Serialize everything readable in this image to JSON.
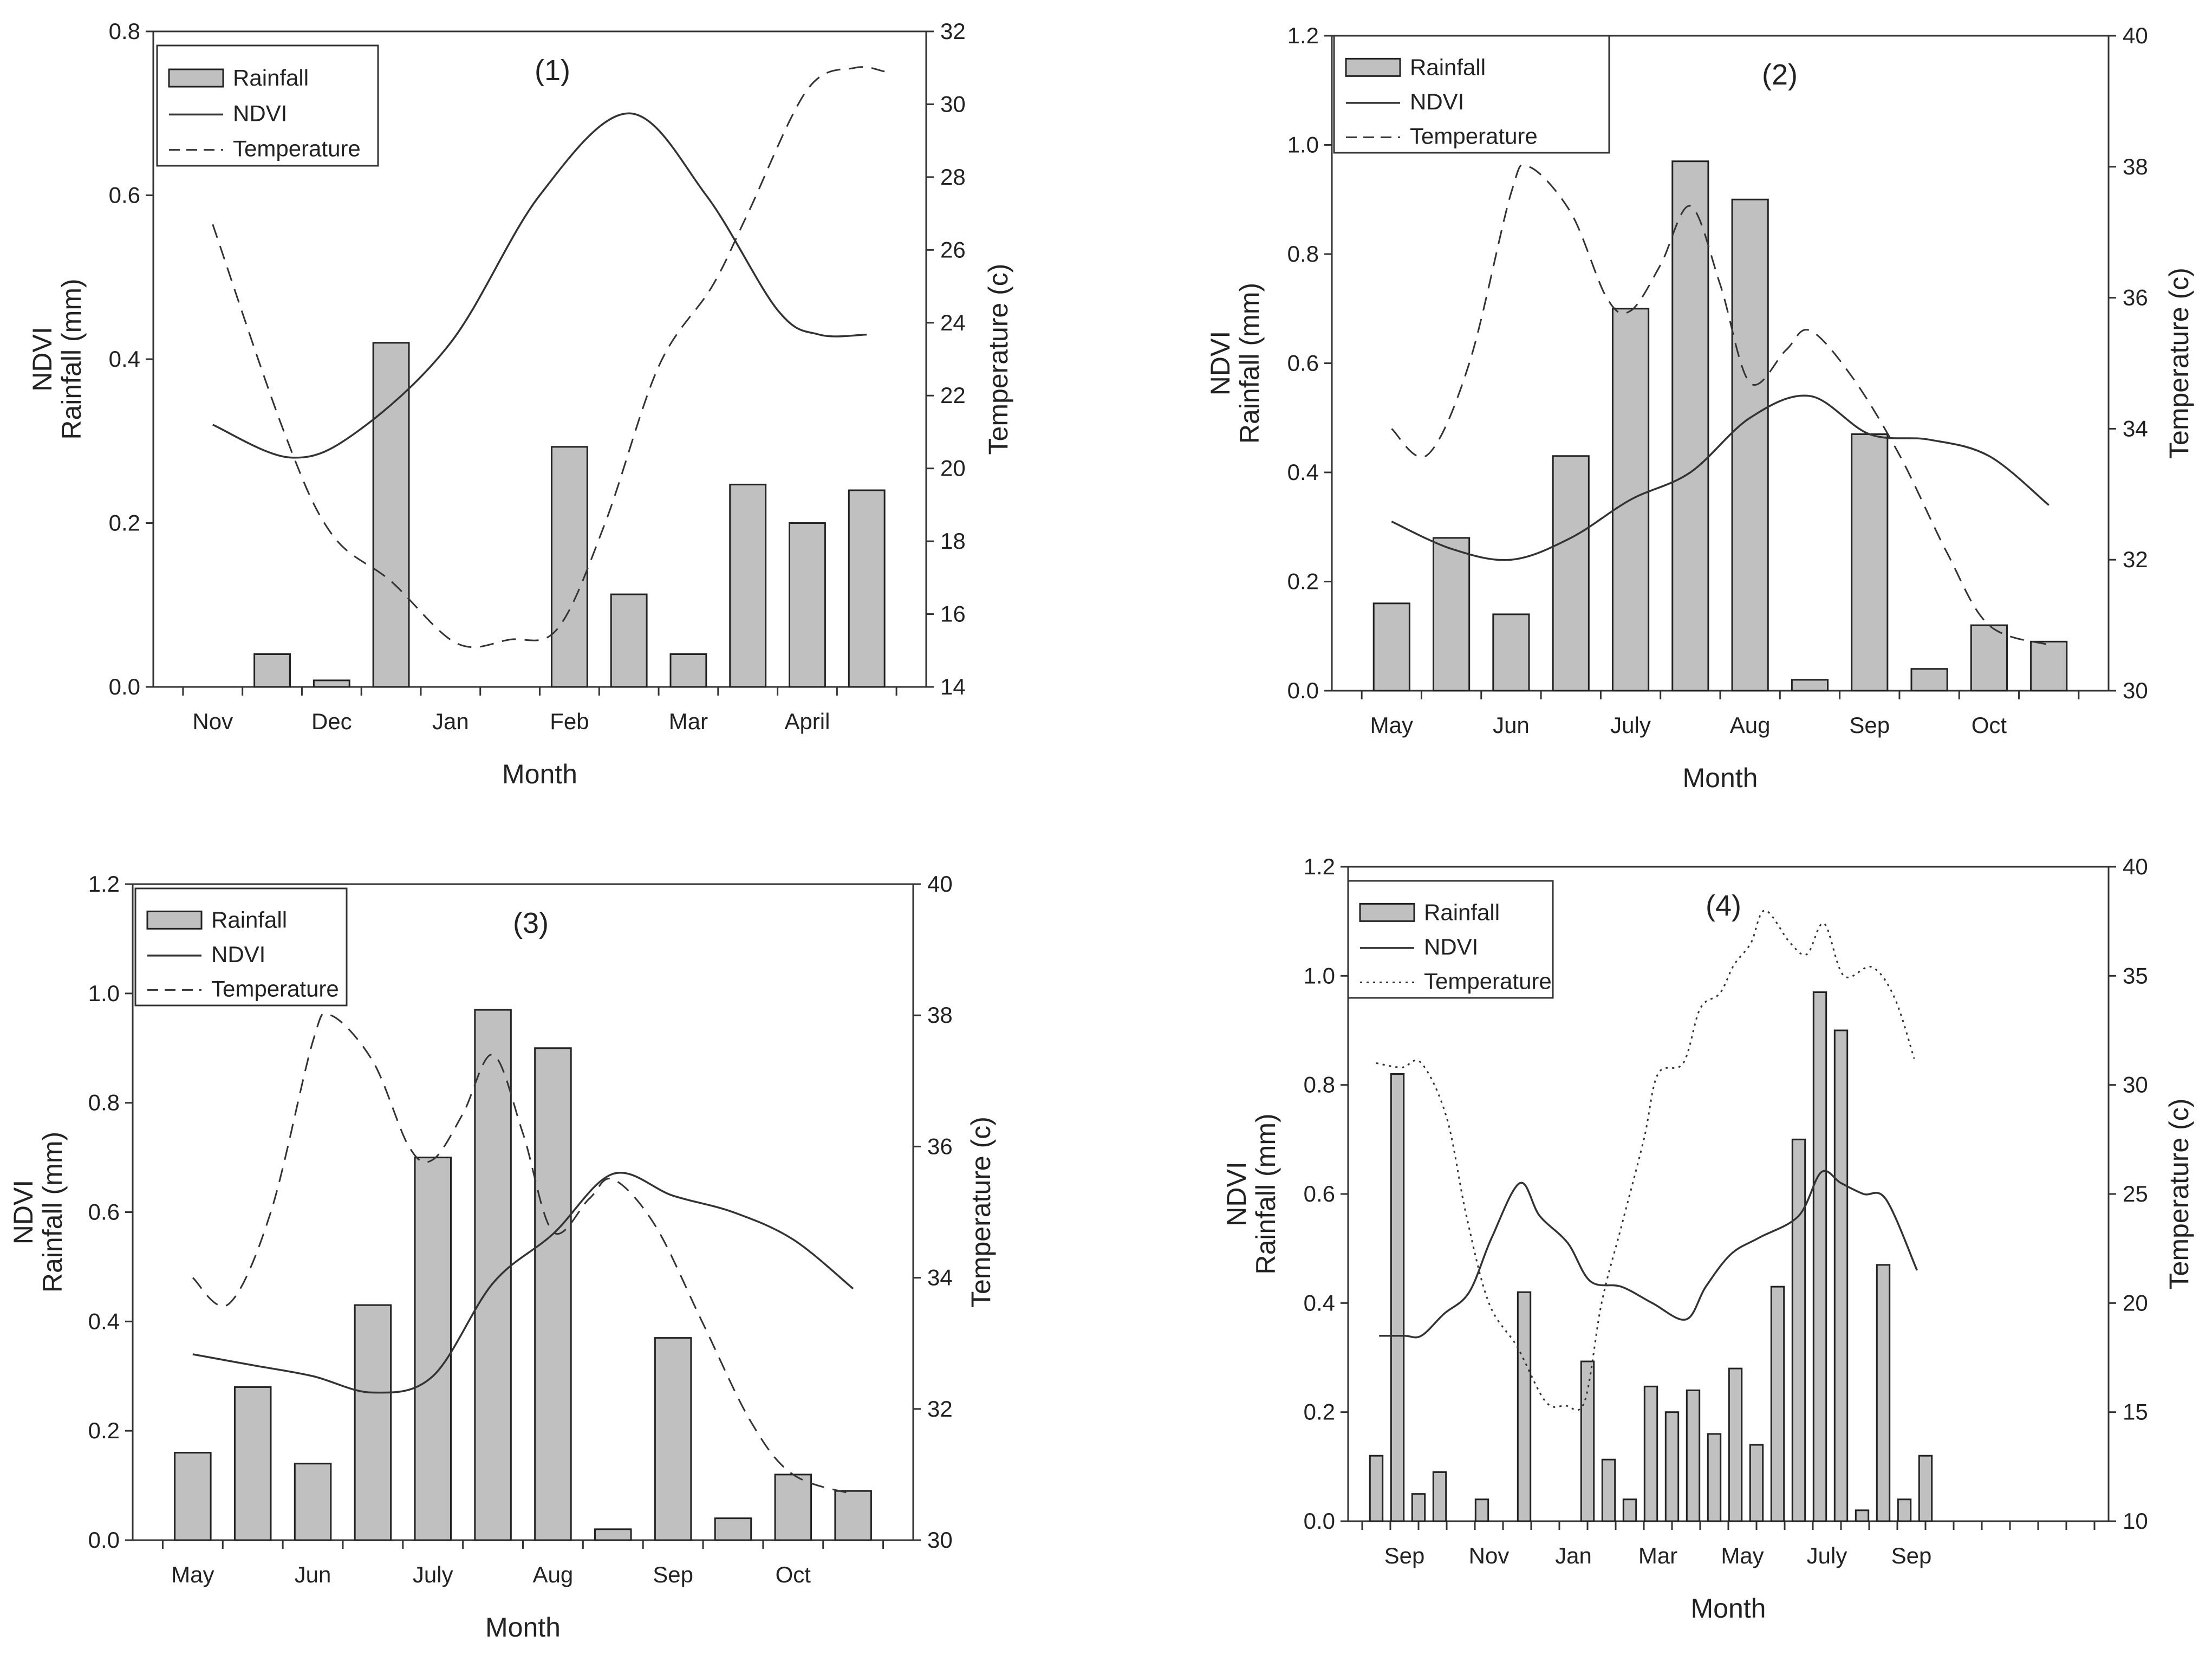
{
  "chart_data": [
    {
      "type": "bar",
      "title": "(1)",
      "xlabel": "Month",
      "ylabel": "NDVI\nRainfall (mm)",
      "y2label": "Temperature (c)",
      "ylim": [
        0,
        0.8
      ],
      "y2lim": [
        14,
        32
      ],
      "yticks": [
        "0.0",
        "0.2",
        "0.4",
        "0.6",
        "0.8"
      ],
      "y2ticks": [
        "14",
        "16",
        "18",
        "20",
        "22",
        "24",
        "26",
        "28",
        "30",
        "32"
      ],
      "xlim": [
        0,
        13
      ],
      "n_slots": 13,
      "month_labels": [
        {
          "label": "Nov",
          "pos": 1
        },
        {
          "label": "Dec",
          "pos": 3
        },
        {
          "label": "Jan",
          "pos": 5
        },
        {
          "label": "Feb",
          "pos": 7
        },
        {
          "label": "Mar",
          "pos": 9
        },
        {
          "label": "April",
          "pos": 11
        }
      ],
      "rainfall": [
        {
          "pos": 2,
          "value": 0.04
        },
        {
          "pos": 3,
          "value": 0.008
        },
        {
          "pos": 4,
          "value": 0.42
        },
        {
          "pos": 7,
          "value": 0.293
        },
        {
          "pos": 8,
          "value": 0.113
        },
        {
          "pos": 9,
          "value": 0.04
        },
        {
          "pos": 10,
          "value": 0.247
        },
        {
          "pos": 11,
          "value": 0.2
        },
        {
          "pos": 12,
          "value": 0.24
        }
      ],
      "ndvi": [
        [
          1,
          0.32
        ],
        [
          2.3,
          0.28
        ],
        [
          3.4,
          0.31
        ],
        [
          5,
          0.42
        ],
        [
          6.5,
          0.6
        ],
        [
          8,
          0.7
        ],
        [
          9.3,
          0.6
        ],
        [
          10.5,
          0.46
        ],
        [
          11.2,
          0.43
        ],
        [
          12,
          0.43
        ]
      ],
      "ndvi_style": "solid",
      "temperature": [
        [
          1,
          26.7
        ],
        [
          2.2,
          21
        ],
        [
          3,
          18.2
        ],
        [
          4,
          16.9
        ],
        [
          5.1,
          15.2
        ],
        [
          6,
          15.3
        ],
        [
          6.8,
          15.6
        ],
        [
          7.6,
          18.5
        ],
        [
          8.5,
          22.8
        ],
        [
          9.4,
          25
        ],
        [
          10,
          27
        ],
        [
          11,
          30.4
        ],
        [
          11.8,
          31
        ],
        [
          12.3,
          30.9
        ]
      ],
      "temp_style": "dashed",
      "legend": {
        "rainfall": "Rainfall",
        "ndvi": "NDVI",
        "temperature": "Temperature"
      },
      "legend_position": "top-left"
    },
    {
      "type": "bar",
      "title": "(2)",
      "xlabel": "Month",
      "ylabel": "NDVI\nRainfall (mm)",
      "y2label": "Temperature (c)",
      "ylim": [
        0,
        1.2
      ],
      "y2lim": [
        30,
        40
      ],
      "yticks": [
        "0.0",
        "0.2",
        "0.4",
        "0.6",
        "0.8",
        "1.0",
        "1.2"
      ],
      "y2ticks": [
        "30",
        "32",
        "34",
        "36",
        "38",
        "40"
      ],
      "xlim": [
        0,
        13
      ],
      "n_slots": 13,
      "month_labels": [
        {
          "label": "May",
          "pos": 1
        },
        {
          "label": "Jun",
          "pos": 3
        },
        {
          "label": "July",
          "pos": 5
        },
        {
          "label": "Aug",
          "pos": 7
        },
        {
          "label": "Sep",
          "pos": 9
        },
        {
          "label": "Oct",
          "pos": 11
        }
      ],
      "rainfall": [
        {
          "pos": 1,
          "value": 0.16
        },
        {
          "pos": 2,
          "value": 0.28
        },
        {
          "pos": 3,
          "value": 0.14
        },
        {
          "pos": 4,
          "value": 0.43
        },
        {
          "pos": 5,
          "value": 0.7
        },
        {
          "pos": 6,
          "value": 0.97
        },
        {
          "pos": 7,
          "value": 0.9
        },
        {
          "pos": 8,
          "value": 0.02
        },
        {
          "pos": 9,
          "value": 0.47
        },
        {
          "pos": 10,
          "value": 0.04
        },
        {
          "pos": 11,
          "value": 0.12
        },
        {
          "pos": 12,
          "value": 0.09
        }
      ],
      "ndvi": [
        [
          1,
          0.31
        ],
        [
          2,
          0.26
        ],
        [
          3,
          0.24
        ],
        [
          4,
          0.28
        ],
        [
          5,
          0.35
        ],
        [
          6,
          0.4
        ],
        [
          7,
          0.5
        ],
        [
          8,
          0.54
        ],
        [
          9,
          0.47
        ],
        [
          10,
          0.46
        ],
        [
          11,
          0.43
        ],
        [
          12,
          0.34
        ]
      ],
      "ndvi_style": "solid",
      "temperature": [
        [
          1,
          34
        ],
        [
          1.6,
          33.6
        ],
        [
          2.3,
          35
        ],
        [
          3,
          37.6
        ],
        [
          3.3,
          38
        ],
        [
          4,
          37.3
        ],
        [
          4.6,
          36
        ],
        [
          5,
          35.8
        ],
        [
          5.5,
          36.5
        ],
        [
          6,
          37.4
        ],
        [
          6.5,
          36.2
        ],
        [
          7,
          34.7
        ],
        [
          7.6,
          35.2
        ],
        [
          8,
          35.5
        ],
        [
          8.7,
          34.8
        ],
        [
          9.5,
          33.6
        ],
        [
          10.3,
          32.1
        ],
        [
          11,
          31
        ],
        [
          12,
          30.7
        ]
      ],
      "temp_style": "dashed",
      "legend": {
        "rainfall": "Rainfall",
        "ndvi": "NDVI",
        "temperature": "Temperature"
      },
      "legend_position": "top-left"
    },
    {
      "type": "bar",
      "title": "(3)",
      "xlabel": "Month",
      "ylabel": "NDVI\nRainfall (mm)",
      "y2label": "Temperature (c)",
      "ylim": [
        0,
        1.2
      ],
      "y2lim": [
        30,
        40
      ],
      "yticks": [
        "0.0",
        "0.2",
        "0.4",
        "0.6",
        "0.8",
        "1.0",
        "1.2"
      ],
      "y2ticks": [
        "30",
        "32",
        "34",
        "36",
        "38",
        "40"
      ],
      "xlim": [
        0,
        13
      ],
      "n_slots": 13,
      "month_labels": [
        {
          "label": "May",
          "pos": 1
        },
        {
          "label": "Jun",
          "pos": 3
        },
        {
          "label": "July",
          "pos": 5
        },
        {
          "label": "Aug",
          "pos": 7
        },
        {
          "label": "Sep",
          "pos": 9
        },
        {
          "label": "Oct",
          "pos": 11
        }
      ],
      "rainfall": [
        {
          "pos": 1,
          "value": 0.16
        },
        {
          "pos": 2,
          "value": 0.28
        },
        {
          "pos": 3,
          "value": 0.14
        },
        {
          "pos": 4,
          "value": 0.43
        },
        {
          "pos": 5,
          "value": 0.7
        },
        {
          "pos": 6,
          "value": 0.97
        },
        {
          "pos": 7,
          "value": 0.9
        },
        {
          "pos": 8,
          "value": 0.02
        },
        {
          "pos": 9,
          "value": 0.37
        },
        {
          "pos": 10,
          "value": 0.04
        },
        {
          "pos": 11,
          "value": 0.12
        },
        {
          "pos": 12,
          "value": 0.09
        }
      ],
      "ndvi": [
        [
          1,
          0.34
        ],
        [
          2,
          0.32
        ],
        [
          3,
          0.3
        ],
        [
          4,
          0.27
        ],
        [
          5,
          0.3
        ],
        [
          6,
          0.47
        ],
        [
          7,
          0.56
        ],
        [
          8,
          0.67
        ],
        [
          9,
          0.63
        ],
        [
          10,
          0.6
        ],
        [
          11,
          0.55
        ],
        [
          12,
          0.46
        ]
      ],
      "ndvi_style": "solid",
      "temperature": [
        [
          1,
          34
        ],
        [
          1.6,
          33.6
        ],
        [
          2.3,
          35
        ],
        [
          3,
          37.6
        ],
        [
          3.3,
          38
        ],
        [
          4,
          37.3
        ],
        [
          4.6,
          36
        ],
        [
          5,
          35.8
        ],
        [
          5.5,
          36.5
        ],
        [
          6,
          37.4
        ],
        [
          6.5,
          36.2
        ],
        [
          7,
          34.7
        ],
        [
          7.6,
          35.2
        ],
        [
          8,
          35.5
        ],
        [
          8.7,
          34.8
        ],
        [
          9.5,
          33.3
        ],
        [
          10.3,
          31.8
        ],
        [
          11,
          31
        ],
        [
          12,
          30.7
        ]
      ],
      "temp_style": "dashed",
      "legend": {
        "rainfall": "Rainfall",
        "ndvi": "NDVI",
        "temperature": "Temperature"
      },
      "legend_position": "top-left"
    },
    {
      "type": "bar",
      "title": "(4)",
      "xlabel": "Month",
      "ylabel": "NDVI\nRainfall (mm)",
      "y2label": "Temperature (c)",
      "ylim": [
        0,
        1.2
      ],
      "y2lim": [
        10,
        40
      ],
      "yticks": [
        "0.0",
        "0.2",
        "0.4",
        "0.6",
        "0.8",
        "1.0",
        "1.2"
      ],
      "y2ticks": [
        "10",
        "15",
        "20",
        "25",
        "30",
        "35",
        "40"
      ],
      "xlim": [
        0,
        27
      ],
      "n_slots": 27,
      "month_labels": [
        {
          "label": "Sep",
          "pos": 2
        },
        {
          "label": "Nov",
          "pos": 5
        },
        {
          "label": "Jan",
          "pos": 8
        },
        {
          "label": "Mar",
          "pos": 11
        },
        {
          "label": "May",
          "pos": 14
        },
        {
          "label": "July",
          "pos": 17
        },
        {
          "label": "Sep",
          "pos": 20
        }
      ],
      "rainfall": [
        {
          "pos": 1,
          "value": 0.12
        },
        {
          "pos": 1.75,
          "value": 0.82
        },
        {
          "pos": 2.5,
          "value": 0.05
        },
        {
          "pos": 3.25,
          "value": 0.09
        },
        {
          "pos": 4.75,
          "value": 0.04
        },
        {
          "pos": 6.25,
          "value": 0.42
        },
        {
          "pos": 8.5,
          "value": 0.293
        },
        {
          "pos": 9.25,
          "value": 0.113
        },
        {
          "pos": 10,
          "value": 0.04
        },
        {
          "pos": 10.75,
          "value": 0.247
        },
        {
          "pos": 11.5,
          "value": 0.2
        },
        {
          "pos": 12.25,
          "value": 0.24
        },
        {
          "pos": 13,
          "value": 0.16
        },
        {
          "pos": 13.75,
          "value": 0.28
        },
        {
          "pos": 14.5,
          "value": 0.14
        },
        {
          "pos": 15.25,
          "value": 0.43
        },
        {
          "pos": 16,
          "value": 0.7
        },
        {
          "pos": 16.75,
          "value": 0.97
        },
        {
          "pos": 17.5,
          "value": 0.9
        },
        {
          "pos": 18.25,
          "value": 0.02
        },
        {
          "pos": 19,
          "value": 0.47
        },
        {
          "pos": 19.75,
          "value": 0.04
        },
        {
          "pos": 20.5,
          "value": 0.12
        }
      ],
      "ndvi": [
        [
          1.1,
          0.34
        ],
        [
          2,
          0.34
        ],
        [
          2.6,
          0.34
        ],
        [
          3.4,
          0.38
        ],
        [
          4.3,
          0.42
        ],
        [
          5.1,
          0.52
        ],
        [
          6.1,
          0.62
        ],
        [
          6.8,
          0.56
        ],
        [
          7.8,
          0.51
        ],
        [
          8.6,
          0.44
        ],
        [
          9.7,
          0.43
        ],
        [
          10.8,
          0.4
        ],
        [
          12,
          0.37
        ],
        [
          12.7,
          0.43
        ],
        [
          13.6,
          0.49
        ],
        [
          14.6,
          0.52
        ],
        [
          16,
          0.56
        ],
        [
          16.8,
          0.64
        ],
        [
          17.5,
          0.62
        ],
        [
          18.3,
          0.6
        ],
        [
          19.1,
          0.59
        ],
        [
          20.2,
          0.46
        ]
      ],
      "ndvi_style": "solid",
      "temperature": [
        [
          1,
          31
        ],
        [
          1.9,
          30.8
        ],
        [
          2.6,
          31
        ],
        [
          3.5,
          28.5
        ],
        [
          4.2,
          24
        ],
        [
          5,
          20
        ],
        [
          6,
          18
        ],
        [
          7,
          15.5
        ],
        [
          7.7,
          15.3
        ],
        [
          8.4,
          15.5
        ],
        [
          9,
          20
        ],
        [
          9.7,
          23.5
        ],
        [
          10.5,
          27.5
        ],
        [
          11,
          30.5
        ],
        [
          11.9,
          31
        ],
        [
          12.5,
          33.5
        ],
        [
          13.2,
          34.2
        ],
        [
          13.7,
          35.5
        ],
        [
          14.3,
          36.5
        ],
        [
          14.8,
          38
        ],
        [
          15.7,
          36.5
        ],
        [
          16.3,
          36
        ],
        [
          16.9,
          37.4
        ],
        [
          17.6,
          35
        ],
        [
          18.6,
          35.4
        ],
        [
          19.4,
          34
        ],
        [
          20.1,
          31.2
        ]
      ],
      "temp_style": "dotted",
      "legend": {
        "rainfall": "Rainfall",
        "ndvi": "NDVI",
        "temperature": "Temperature"
      },
      "legend_position": "top-left"
    }
  ]
}
